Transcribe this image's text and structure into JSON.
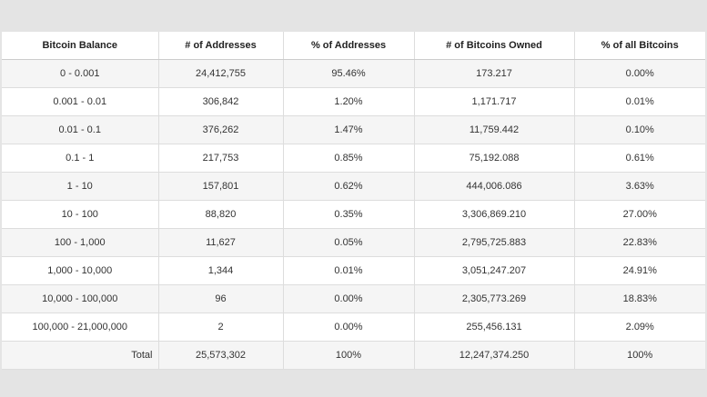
{
  "table": {
    "headers": [
      "Bitcoin Balance",
      "# of Addresses",
      "% of Addresses",
      "# of Bitcoins Owned",
      "% of all Bitcoins"
    ],
    "rows": [
      [
        "0 - 0.001",
        "24,412,755",
        "95.46%",
        "173.217",
        "0.00%"
      ],
      [
        "0.001 - 0.01",
        "306,842",
        "1.20%",
        "1,171.717",
        "0.01%"
      ],
      [
        "0.01 - 0.1",
        "376,262",
        "1.47%",
        "11,759.442",
        "0.10%"
      ],
      [
        "0.1 - 1",
        "217,753",
        "0.85%",
        "75,192.088",
        "0.61%"
      ],
      [
        "1 - 10",
        "157,801",
        "0.62%",
        "444,006.086",
        "3.63%"
      ],
      [
        "10 - 100",
        "88,820",
        "0.35%",
        "3,306,869.210",
        "27.00%"
      ],
      [
        "100 - 1,000",
        "11,627",
        "0.05%",
        "2,795,725.883",
        "22.83%"
      ],
      [
        "1,000 - 10,000",
        "1,344",
        "0.01%",
        "3,051,247.207",
        "24.91%"
      ],
      [
        "10,000 - 100,000",
        "96",
        "0.00%",
        "2,305,773.269",
        "18.83%"
      ],
      [
        "100,000 - 21,000,000",
        "2",
        "0.00%",
        "255,456.131",
        "2.09%"
      ]
    ],
    "total": [
      "Total",
      "25,573,302",
      "100%",
      "12,247,374.250",
      "100%"
    ]
  }
}
